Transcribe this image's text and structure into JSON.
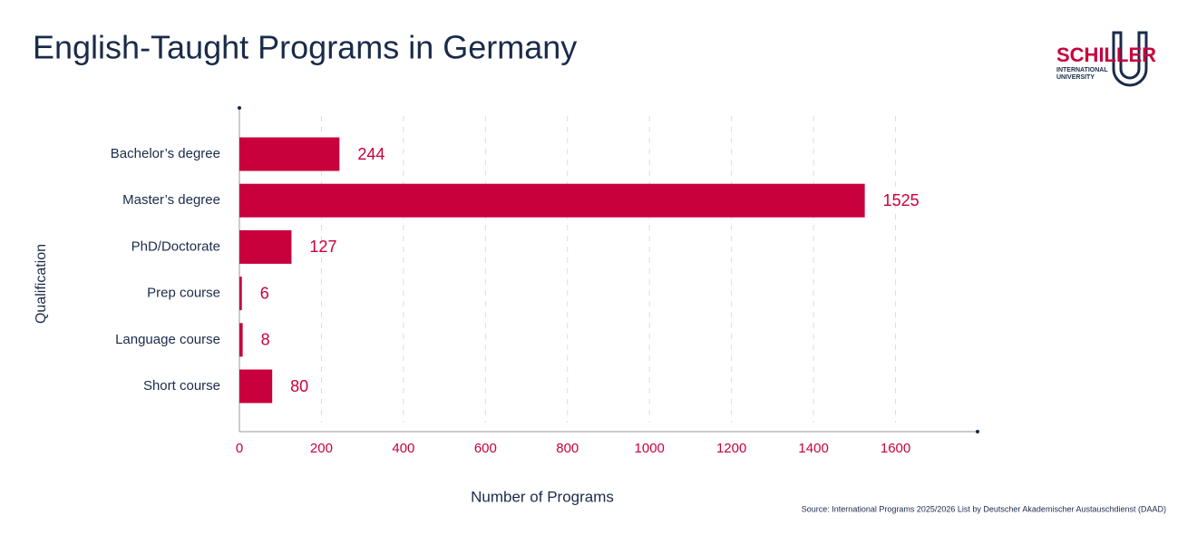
{
  "chart_data": {
    "type": "bar",
    "orientation": "horizontal",
    "title": "English-Taught Programs in Germany",
    "x_label": "Number of Programs",
    "y_label": "Qualification",
    "categories": [
      "Bachelor’s degree",
      "Master’s degree",
      "PhD/Doctorate",
      "Prep course",
      "Language course",
      "Short course"
    ],
    "values": [
      244,
      1525,
      127,
      6,
      8,
      80
    ],
    "color": "#c8003c",
    "xlim": [
      0,
      1800
    ],
    "xticks": [
      0,
      200,
      400,
      600,
      800,
      1000,
      1200,
      1400,
      1600
    ],
    "grid": true,
    "source": "Source: International Programs 2025/2026 List by Deutscher Akademischer Austauschdienst (DAAD)"
  },
  "logo": {
    "name": "SCHILLER",
    "line1": "INTERNATIONAL",
    "line2": "UNIVERSITY"
  }
}
